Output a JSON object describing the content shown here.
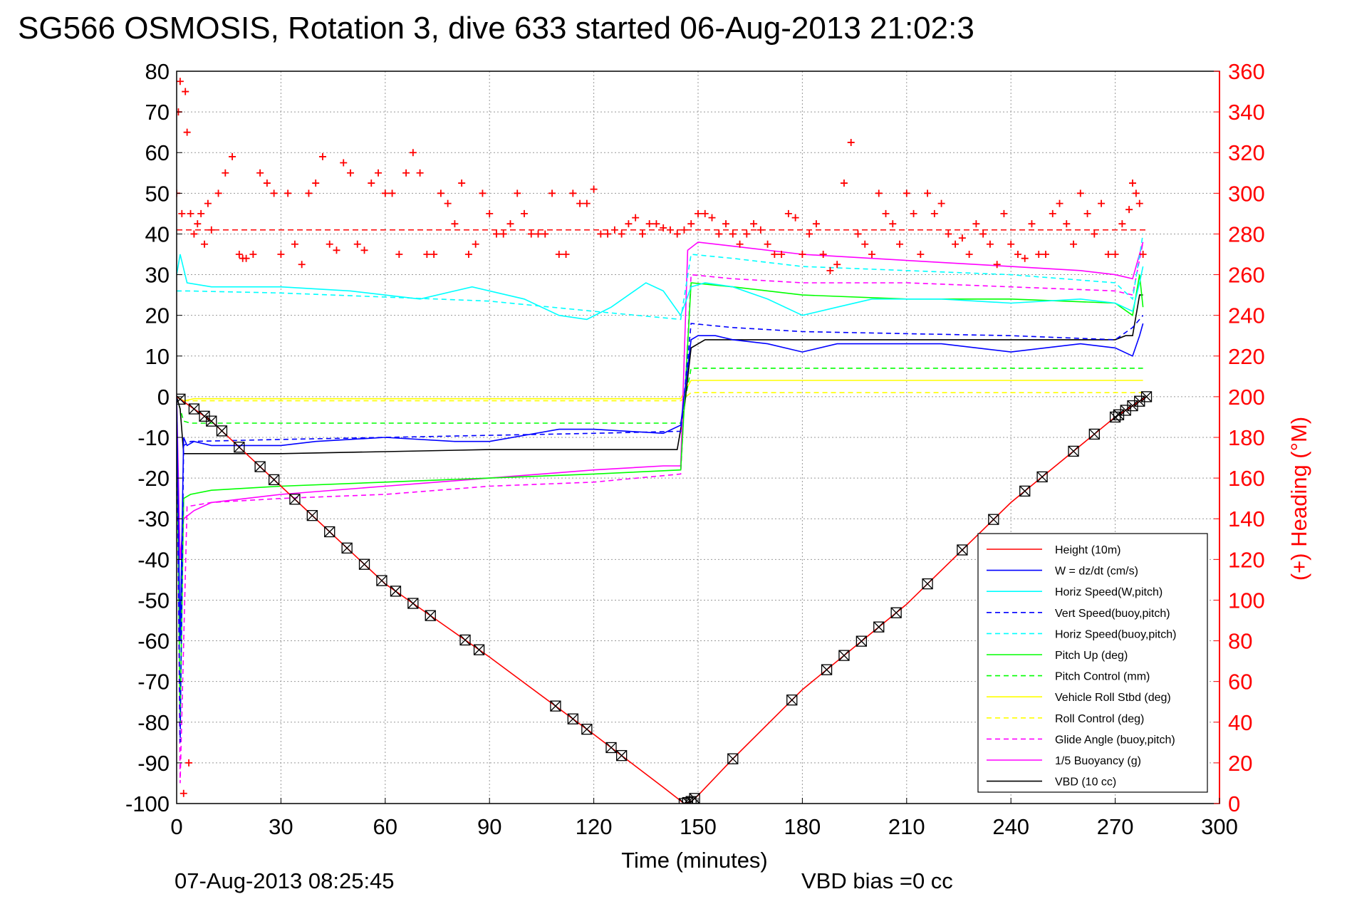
{
  "chart_data": {
    "type": "line",
    "title": "SG566 OSMOSIS, Rotation 3, dive 633 started 06-Aug-2013 21:02:3",
    "xlabel": "Time (minutes)",
    "ylabel": "",
    "y2label": "(+) Heading (°M)",
    "footer_left": "07-Aug-2013 08:25:45",
    "footer_right": "VBD bias =0 cc",
    "xlim": [
      0,
      300
    ],
    "ylim": [
      -100,
      80
    ],
    "y2lim": [
      0,
      360
    ],
    "xticks": [
      0,
      30,
      60,
      90,
      120,
      150,
      180,
      210,
      240,
      270,
      300
    ],
    "yticks": [
      -100,
      -90,
      -80,
      -70,
      -60,
      -50,
      -40,
      -30,
      -20,
      -10,
      0,
      10,
      20,
      30,
      40,
      50,
      60,
      70,
      80
    ],
    "y2ticks": [
      0,
      20,
      40,
      60,
      80,
      100,
      120,
      140,
      160,
      180,
      200,
      220,
      240,
      260,
      280,
      300,
      320,
      340,
      360
    ],
    "grid": true,
    "legend_position": "bottom-right",
    "colors": {
      "height": "#ff0000",
      "w": "#0000ff",
      "horiz_speed": "#00ffff",
      "vert_speed_buoy": "#0000ff",
      "horiz_speed_buoy": "#00ffff",
      "pitch": "#00ff00",
      "pitch_control": "#00ff00",
      "roll": "#ffff00",
      "roll_control": "#ffff00",
      "glide_angle": "#ff00ff",
      "buoyancy": "#ff00ff",
      "vbd": "#000000",
      "heading": "#ff0000"
    },
    "series": [
      {
        "key": "height",
        "name": "Height (10m)",
        "style": "solid",
        "x": [
          0,
          10,
          30,
          60,
          90,
          120,
          140,
          146,
          148,
          150,
          160,
          180,
          210,
          240,
          270,
          279
        ],
        "y": [
          0,
          -6,
          -22,
          -46,
          -64,
          -83,
          -96,
          -100,
          -99.5,
          -98,
          -89,
          -72,
          -51,
          -26,
          -5,
          0
        ]
      },
      {
        "key": "vbd",
        "name": "VBD (10 cc)",
        "style": "solid",
        "x": [
          0,
          1,
          2,
          5,
          30,
          60,
          90,
          120,
          144,
          146,
          148,
          152,
          160,
          180,
          210,
          240,
          270,
          273,
          275,
          277,
          278
        ],
        "y": [
          0,
          -3,
          -14,
          -14,
          -14,
          -13.5,
          -13,
          -13,
          -13,
          -3,
          12,
          14,
          14,
          14,
          14,
          14,
          14,
          15,
          15,
          25,
          25
        ]
      },
      {
        "key": "w",
        "name": "W = dz/dt (cm/s)",
        "style": "solid",
        "x": [
          0,
          1,
          2,
          3,
          5,
          10,
          20,
          30,
          40,
          60,
          80,
          90,
          110,
          120,
          140,
          145,
          148,
          150,
          155,
          160,
          170,
          180,
          190,
          200,
          220,
          240,
          260,
          270,
          275,
          277,
          278
        ],
        "y": [
          0,
          -60,
          -10,
          -12,
          -11,
          -12,
          -12,
          -12,
          -11,
          -10,
          -11,
          -11,
          -8,
          -8,
          -9,
          -7,
          14,
          15,
          15,
          14,
          13,
          11,
          13,
          13,
          13,
          11,
          13,
          12,
          10,
          15,
          18
        ]
      },
      {
        "key": "vert_speed_buoy",
        "name": "Vert Speed(buoy,pitch)",
        "style": "dashed",
        "x": [
          0,
          1,
          2,
          4,
          30,
          60,
          90,
          120,
          145,
          148,
          160,
          180,
          210,
          240,
          270,
          275,
          278
        ],
        "y": [
          0,
          -85,
          -12,
          -11,
          -10.5,
          -10,
          -9.5,
          -9,
          -8.5,
          18,
          17,
          16,
          15.5,
          15,
          14,
          17,
          20
        ]
      },
      {
        "key": "horiz_speed",
        "name": "Horiz Speed(W,pitch)",
        "style": "solid",
        "x": [
          0,
          1,
          3,
          10,
          20,
          30,
          50,
          70,
          85,
          100,
          110,
          118,
          125,
          135,
          140,
          145,
          148,
          152,
          160,
          170,
          180,
          190,
          200,
          220,
          240,
          260,
          270,
          275,
          277,
          278
        ],
        "y": [
          30,
          35,
          28,
          27,
          27,
          27,
          26,
          24,
          27,
          24,
          20,
          19,
          22,
          28,
          26,
          20,
          27,
          28,
          27,
          24,
          20,
          22,
          24,
          24,
          23,
          24,
          23,
          21,
          28,
          32
        ]
      },
      {
        "key": "horiz_speed_buoy",
        "name": "Horiz Speed(buoy,pitch)",
        "style": "dashed",
        "x": [
          0,
          3,
          30,
          60,
          90,
          120,
          145,
          148,
          160,
          180,
          210,
          240,
          270,
          275,
          278
        ],
        "y": [
          26,
          26,
          25.5,
          24.5,
          23.5,
          21,
          19,
          35,
          34,
          32,
          31,
          30,
          28,
          24,
          40
        ]
      },
      {
        "key": "pitch",
        "name": "Pitch Up (deg)",
        "style": "solid",
        "x": [
          0,
          1,
          2,
          4,
          10,
          30,
          60,
          90,
          120,
          145,
          148,
          160,
          180,
          210,
          240,
          270,
          275,
          277,
          278
        ],
        "y": [
          0,
          -80,
          -25,
          -24,
          -23,
          -22,
          -21,
          -20,
          -19,
          -18,
          28,
          27,
          25,
          24,
          24,
          23,
          20,
          30,
          22
        ]
      },
      {
        "key": "pitch_control",
        "name": "Pitch Control (mm)",
        "style": "dashed",
        "x": [
          0,
          2,
          4,
          30,
          60,
          90,
          120,
          145,
          148,
          160,
          180,
          210,
          240,
          270,
          278
        ],
        "y": [
          0,
          -6,
          -6.5,
          -6.5,
          -6.5,
          -6.5,
          -6.5,
          -6.5,
          7,
          7,
          7,
          7,
          7,
          7,
          7
        ]
      },
      {
        "key": "roll",
        "name": "Vehicle Roll Stbd (deg)",
        "style": "solid",
        "x": [
          0,
          2,
          5,
          30,
          60,
          90,
          120,
          145,
          148,
          160,
          180,
          210,
          240,
          270,
          278
        ],
        "y": [
          0,
          -1,
          -0.5,
          -0.5,
          -0.5,
          -0.5,
          -0.5,
          -0.5,
          4,
          4,
          4,
          4,
          4,
          4,
          4
        ]
      },
      {
        "key": "roll_control",
        "name": "Roll Control (deg)",
        "style": "dashed",
        "x": [
          0,
          2,
          5,
          30,
          60,
          90,
          120,
          145,
          148,
          160,
          180,
          210,
          240,
          270,
          278
        ],
        "y": [
          0,
          -1,
          -1,
          -1,
          -1,
          -1,
          -1,
          -1,
          1,
          1,
          1,
          1,
          1,
          1,
          1
        ]
      },
      {
        "key": "glide_angle",
        "name": "Glide Angle (buoy,pitch)",
        "style": "dashed",
        "x": [
          0,
          1,
          3,
          10,
          30,
          60,
          90,
          120,
          145,
          148,
          160,
          180,
          210,
          240,
          270,
          275,
          278
        ],
        "y": [
          0,
          -95,
          -27,
          -26,
          -25,
          -24,
          -22,
          -21,
          -19,
          30,
          29,
          28,
          28,
          27,
          26,
          25,
          38
        ]
      },
      {
        "key": "buoyancy",
        "name": "1/5 Buoyancy (g)",
        "style": "solid",
        "x": [
          0,
          1,
          2,
          5,
          10,
          30,
          60,
          90,
          120,
          140,
          145,
          147,
          150,
          160,
          180,
          200,
          220,
          240,
          260,
          270,
          275,
          278
        ],
        "y": [
          0,
          -40,
          -30,
          -28,
          -26,
          -24,
          -22,
          -20,
          -18,
          -17,
          -17,
          36,
          38,
          37,
          35,
          34,
          33,
          32,
          31,
          30,
          29,
          38
        ]
      }
    ],
    "heading_reference": 282,
    "heading_points": {
      "name": "(+) Heading (°M)",
      "x": [
        0,
        0.5,
        1,
        1.5,
        2,
        2.5,
        3,
        3.5,
        4,
        5,
        6,
        7,
        8,
        9,
        10,
        12,
        14,
        16,
        18,
        19,
        20,
        22,
        24,
        26,
        28,
        30,
        32,
        34,
        36,
        38,
        40,
        42,
        44,
        46,
        48,
        50,
        52,
        54,
        56,
        58,
        60,
        62,
        64,
        66,
        68,
        70,
        72,
        74,
        76,
        78,
        80,
        82,
        84,
        86,
        88,
        90,
        92,
        94,
        96,
        98,
        100,
        102,
        104,
        106,
        108,
        110,
        112,
        114,
        116,
        118,
        120,
        122,
        124,
        126,
        128,
        130,
        132,
        134,
        136,
        138,
        140,
        142,
        144,
        146,
        148,
        150,
        152,
        154,
        156,
        158,
        160,
        162,
        164,
        166,
        168,
        170,
        172,
        174,
        176,
        178,
        180,
        182,
        184,
        186,
        188,
        190,
        192,
        194,
        196,
        198,
        200,
        202,
        204,
        206,
        208,
        210,
        212,
        214,
        216,
        218,
        220,
        222,
        224,
        226,
        228,
        230,
        232,
        234,
        236,
        238,
        240,
        242,
        244,
        246,
        248,
        250,
        252,
        254,
        256,
        258,
        260,
        262,
        264,
        266,
        268,
        270,
        272,
        274,
        275,
        276,
        277,
        278
      ],
      "y": [
        300,
        340,
        355,
        290,
        5,
        350,
        330,
        20,
        290,
        280,
        285,
        290,
        275,
        295,
        282,
        300,
        310,
        318,
        270,
        268,
        268,
        270,
        310,
        305,
        300,
        270,
        300,
        275,
        265,
        300,
        305,
        318,
        275,
        272,
        315,
        310,
        275,
        272,
        305,
        310,
        300,
        300,
        270,
        310,
        320,
        310,
        270,
        270,
        300,
        295,
        285,
        305,
        270,
        275,
        300,
        290,
        280,
        280,
        285,
        300,
        290,
        280,
        280,
        280,
        300,
        270,
        270,
        300,
        295,
        295,
        302,
        280,
        280,
        282,
        280,
        285,
        288,
        280,
        285,
        285,
        283,
        282,
        280,
        282,
        285,
        290,
        290,
        288,
        280,
        285,
        280,
        275,
        280,
        285,
        282,
        275,
        270,
        270,
        290,
        288,
        270,
        280,
        285,
        270,
        262,
        265,
        305,
        325,
        280,
        275,
        270,
        300,
        290,
        285,
        275,
        300,
        290,
        270,
        300,
        290,
        295,
        280,
        275,
        278,
        270,
        285,
        280,
        275,
        265,
        290,
        275,
        270,
        268,
        285,
        270,
        270,
        290,
        295,
        285,
        275,
        300,
        290,
        280,
        295,
        270,
        270,
        285,
        292,
        305,
        300,
        295,
        270
      ]
    }
  }
}
